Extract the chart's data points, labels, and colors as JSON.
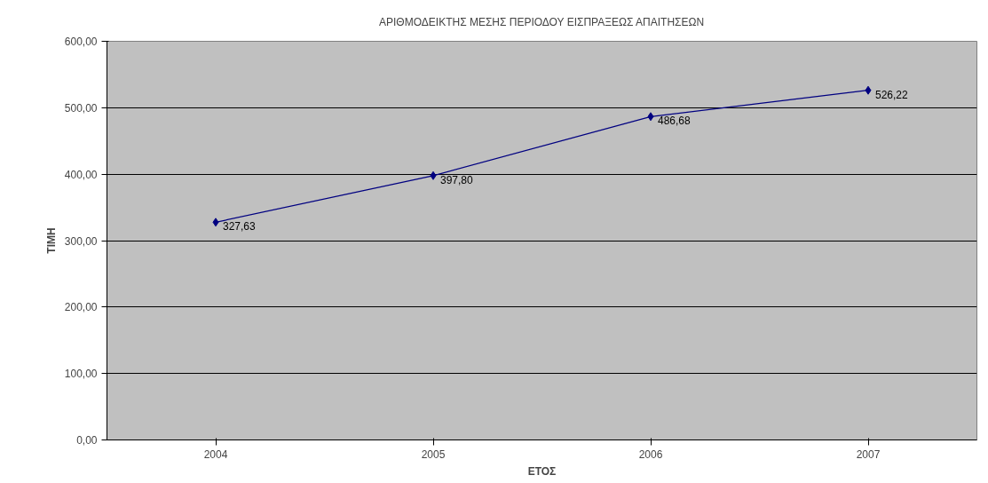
{
  "chart_data": {
    "type": "line",
    "title": "ΑΡΙΘΜΟΔΕΙΚΤΗΣ ΜΕΣΗΣ ΠΕΡΙΟΔΟΥ ΕΙΣΠΡΑΞΕΩΣ ΑΠΑΙΤΗΣΕΩΝ",
    "xlabel": "ΕΤΟΣ",
    "ylabel": "ΤΙΜΗ",
    "categories": [
      "2004",
      "2005",
      "2006",
      "2007"
    ],
    "series": [
      {
        "color": "#000080",
        "values": [
          327.63,
          397.8,
          486.68,
          526.22
        ],
        "value_labels": [
          "327,63",
          "397,80",
          "486,68",
          "526,22"
        ]
      }
    ],
    "ylim": [
      0,
      600
    ],
    "yticks": [
      {
        "value": 0,
        "label": "0,00"
      },
      {
        "value": 100,
        "label": "100,00"
      },
      {
        "value": 200,
        "label": "200,00"
      },
      {
        "value": 300,
        "label": "300,00"
      },
      {
        "value": 400,
        "label": "400,00"
      },
      {
        "value": 500,
        "label": "500,00"
      },
      {
        "value": 600,
        "label": "600,00"
      }
    ],
    "grid": "y",
    "marker": "diamond",
    "line_style": "solid"
  }
}
